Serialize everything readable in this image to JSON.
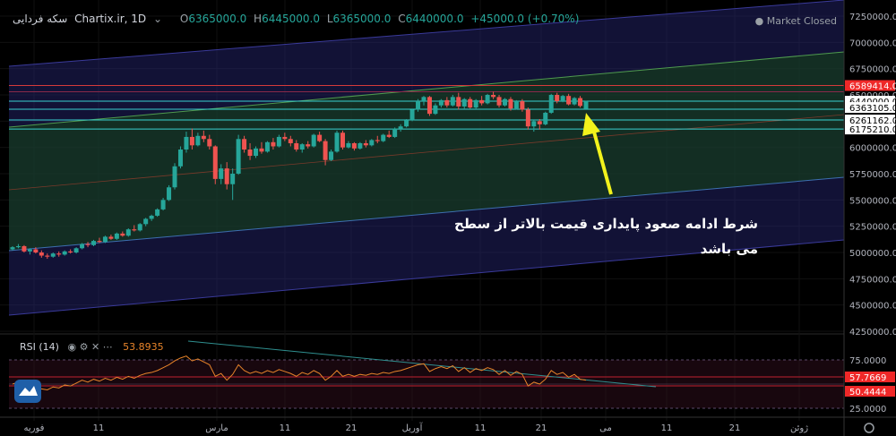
{
  "header": {
    "symbol": "سکه فردایی",
    "source": "Chartix.ir, 1D",
    "open_label": "O",
    "open": "6365000.0",
    "high_label": "H",
    "high": "6445000.0",
    "low_label": "L",
    "low": "6365000.0",
    "close_label": "C",
    "close": "6440000.0",
    "change": "+45000.0 (+0.70%)",
    "market_status": "Market Closed"
  },
  "annotation": "شرط ادامه صعود پایداری قیمت بالاتر از سطح می باشد",
  "rsi": {
    "label": "RSI (14)",
    "value": "53.8935",
    "badges": [
      "57.7669",
      "50.4444"
    ],
    "ticks": [
      "75.0000",
      "25.0000"
    ]
  },
  "colors": {
    "up": "#26a69a",
    "down": "#ef5350",
    "rsi": "#e8842a",
    "arrow": "#f2f21c",
    "bg": "#000000"
  },
  "chart_data": {
    "type": "candlestick",
    "price_axis_ticks": [
      7250000,
      7000000,
      6750000,
      6500000,
      6250000,
      6000000,
      5750000,
      5500000,
      5250000,
      5000000,
      4750000,
      4500000,
      4250000
    ],
    "price_axis_labels": [
      "7250000.0",
      "7000000.0",
      "6750000.0",
      "6500000.0",
      "6250000.0",
      "6000000.0",
      "5750000.0",
      "5500000.0",
      "5250000.0",
      "5000000.0",
      "4750000.0",
      "4500000.0",
      "4250000.0"
    ],
    "ylim": [
      4250000,
      7250000
    ],
    "price_badges": [
      {
        "label": "6589414.0",
        "value": 6589414,
        "color": "#ef2828"
      },
      {
        "label": "6440000.0",
        "value": 6440000,
        "color": "#ffffff"
      },
      {
        "label": "6363105.0",
        "value": 6363105,
        "color": "#ffffff"
      },
      {
        "label": "6261162.0",
        "value": 6261162,
        "color": "#ffffff"
      },
      {
        "label": "6175210.0",
        "value": 6175210,
        "color": "#ffffff"
      }
    ],
    "x_ticks": [
      "فوریه",
      "11",
      "مارس",
      "11",
      "21",
      "آوریل",
      "11",
      "21",
      "می",
      "11",
      "21",
      "ژوئن"
    ],
    "last_close": 6440000,
    "candles_ohlc": [
      [
        5030000,
        5060000,
        5020000,
        5050000
      ],
      [
        5050000,
        5080000,
        5040000,
        5060000
      ],
      [
        5060000,
        5070000,
        5000000,
        5010000
      ],
      [
        5010000,
        5040000,
        4980000,
        5030000
      ],
      [
        5030000,
        5050000,
        4990000,
        5000000
      ],
      [
        5000000,
        5020000,
        4950000,
        4970000
      ],
      [
        4970000,
        4990000,
        4940000,
        4960000
      ],
      [
        4960000,
        5000000,
        4950000,
        4990000
      ],
      [
        4990000,
        5010000,
        4960000,
        4980000
      ],
      [
        4980000,
        5020000,
        4970000,
        5010000
      ],
      [
        5010000,
        5030000,
        4990000,
        5000000
      ],
      [
        5000000,
        5050000,
        4990000,
        5040000
      ],
      [
        5040000,
        5090000,
        5030000,
        5080000
      ],
      [
        5080000,
        5100000,
        5050000,
        5070000
      ],
      [
        5070000,
        5120000,
        5060000,
        5110000
      ],
      [
        5110000,
        5140000,
        5090000,
        5100000
      ],
      [
        5100000,
        5160000,
        5090000,
        5150000
      ],
      [
        5150000,
        5170000,
        5120000,
        5130000
      ],
      [
        5130000,
        5190000,
        5120000,
        5180000
      ],
      [
        5180000,
        5200000,
        5150000,
        5160000
      ],
      [
        5160000,
        5230000,
        5150000,
        5220000
      ],
      [
        5220000,
        5260000,
        5200000,
        5210000
      ],
      [
        5210000,
        5280000,
        5200000,
        5270000
      ],
      [
        5270000,
        5330000,
        5250000,
        5320000
      ],
      [
        5320000,
        5360000,
        5300000,
        5350000
      ],
      [
        5350000,
        5420000,
        5340000,
        5410000
      ],
      [
        5410000,
        5520000,
        5400000,
        5500000
      ],
      [
        5500000,
        5640000,
        5490000,
        5620000
      ],
      [
        5620000,
        5850000,
        5600000,
        5820000
      ],
      [
        5820000,
        6010000,
        5800000,
        5980000
      ],
      [
        5980000,
        6150000,
        5950000,
        6100000
      ],
      [
        6100000,
        6180000,
        5980000,
        6020000
      ],
      [
        6020000,
        6140000,
        6010000,
        6110000
      ],
      [
        6110000,
        6160000,
        6050000,
        6080000
      ],
      [
        6080000,
        6120000,
        5980000,
        6010000
      ],
      [
        6010000,
        6020000,
        5650000,
        5700000
      ],
      [
        5700000,
        5840000,
        5650000,
        5800000
      ],
      [
        5800000,
        5860000,
        5600000,
        5650000
      ],
      [
        5650000,
        5800000,
        5500000,
        5750000
      ],
      [
        5750000,
        6120000,
        5740000,
        6080000
      ],
      [
        6080000,
        6110000,
        5950000,
        5980000
      ],
      [
        5980000,
        6040000,
        5880000,
        5920000
      ],
      [
        5920000,
        6010000,
        5900000,
        5990000
      ],
      [
        5990000,
        6050000,
        5940000,
        5960000
      ],
      [
        5960000,
        6060000,
        5950000,
        6050000
      ],
      [
        6050000,
        6090000,
        5980000,
        6010000
      ],
      [
        6010000,
        6120000,
        6000000,
        6100000
      ],
      [
        6100000,
        6140000,
        6060000,
        6080000
      ],
      [
        6080000,
        6110000,
        6010000,
        6040000
      ],
      [
        6040000,
        6070000,
        5960000,
        5980000
      ],
      [
        5980000,
        6040000,
        5950000,
        6030000
      ],
      [
        6030000,
        6060000,
        5990000,
        6010000
      ],
      [
        6010000,
        6130000,
        6000000,
        6120000
      ],
      [
        6120000,
        6150000,
        6050000,
        6060000
      ],
      [
        6060000,
        6080000,
        5830000,
        5880000
      ],
      [
        5880000,
        5980000,
        5870000,
        5960000
      ],
      [
        5960000,
        6160000,
        5950000,
        6140000
      ],
      [
        6140000,
        6160000,
        5980000,
        6000000
      ],
      [
        6000000,
        6060000,
        5990000,
        6040000
      ],
      [
        6040000,
        6050000,
        5970000,
        5990000
      ],
      [
        5990000,
        6050000,
        5980000,
        6040000
      ],
      [
        6040000,
        6070000,
        6000000,
        6020000
      ],
      [
        6020000,
        6080000,
        6010000,
        6070000
      ],
      [
        6070000,
        6110000,
        6040000,
        6060000
      ],
      [
        6060000,
        6130000,
        6050000,
        6120000
      ],
      [
        6120000,
        6160000,
        6090000,
        6100000
      ],
      [
        6100000,
        6190000,
        6090000,
        6180000
      ],
      [
        6180000,
        6220000,
        6150000,
        6200000
      ],
      [
        6200000,
        6270000,
        6190000,
        6260000
      ],
      [
        6260000,
        6370000,
        6250000,
        6360000
      ],
      [
        6360000,
        6460000,
        6340000,
        6440000
      ],
      [
        6440000,
        6490000,
        6400000,
        6480000
      ],
      [
        6480000,
        6490000,
        6300000,
        6320000
      ],
      [
        6320000,
        6420000,
        6310000,
        6400000
      ],
      [
        6400000,
        6460000,
        6380000,
        6450000
      ],
      [
        6450000,
        6480000,
        6380000,
        6400000
      ],
      [
        6400000,
        6500000,
        6390000,
        6480000
      ],
      [
        6480000,
        6520000,
        6360000,
        6390000
      ],
      [
        6390000,
        6470000,
        6370000,
        6460000
      ],
      [
        6460000,
        6480000,
        6370000,
        6380000
      ],
      [
        6380000,
        6460000,
        6370000,
        6450000
      ],
      [
        6450000,
        6490000,
        6400000,
        6420000
      ],
      [
        6420000,
        6510000,
        6410000,
        6500000
      ],
      [
        6500000,
        6530000,
        6460000,
        6480000
      ],
      [
        6480000,
        6500000,
        6380000,
        6400000
      ],
      [
        6400000,
        6470000,
        6390000,
        6460000
      ],
      [
        6460000,
        6480000,
        6350000,
        6370000
      ],
      [
        6370000,
        6450000,
        6360000,
        6440000
      ],
      [
        6440000,
        6460000,
        6340000,
        6360000
      ],
      [
        6360000,
        6380000,
        6170000,
        6200000
      ],
      [
        6200000,
        6260000,
        6150000,
        6250000
      ],
      [
        6250000,
        6270000,
        6170000,
        6220000
      ],
      [
        6220000,
        6340000,
        6210000,
        6330000
      ],
      [
        6330000,
        6510000,
        6320000,
        6500000
      ],
      [
        6500000,
        6520000,
        6420000,
        6440000
      ],
      [
        6440000,
        6500000,
        6430000,
        6490000
      ],
      [
        6490000,
        6510000,
        6400000,
        6410000
      ],
      [
        6410000,
        6480000,
        6400000,
        6470000
      ],
      [
        6470000,
        6490000,
        6380000,
        6395000
      ],
      [
        6365000,
        6445000,
        6365000,
        6440000
      ]
    ],
    "rsi_values": [
      50,
      52,
      49,
      51,
      48,
      45,
      44,
      47,
      46,
      49,
      48,
      51,
      54,
      52,
      55,
      53,
      56,
      54,
      57,
      55,
      58,
      56,
      59,
      61,
      62,
      64,
      67,
      70,
      74,
      77,
      79,
      74,
      76,
      73,
      70,
      58,
      61,
      54,
      60,
      70,
      64,
      61,
      63,
      61,
      64,
      62,
      65,
      63,
      61,
      58,
      62,
      60,
      64,
      61,
      54,
      58,
      64,
      58,
      60,
      58,
      60,
      59,
      61,
      60,
      62,
      61,
      63,
      64,
      66,
      68,
      70,
      71,
      63,
      66,
      68,
      66,
      69,
      63,
      67,
      62,
      66,
      64,
      67,
      65,
      60,
      64,
      59,
      63,
      60,
      48,
      52,
      50,
      55,
      64,
      60,
      62,
      57,
      60,
      55,
      54
    ],
    "rsi_ticks": [
      75,
      25
    ]
  }
}
